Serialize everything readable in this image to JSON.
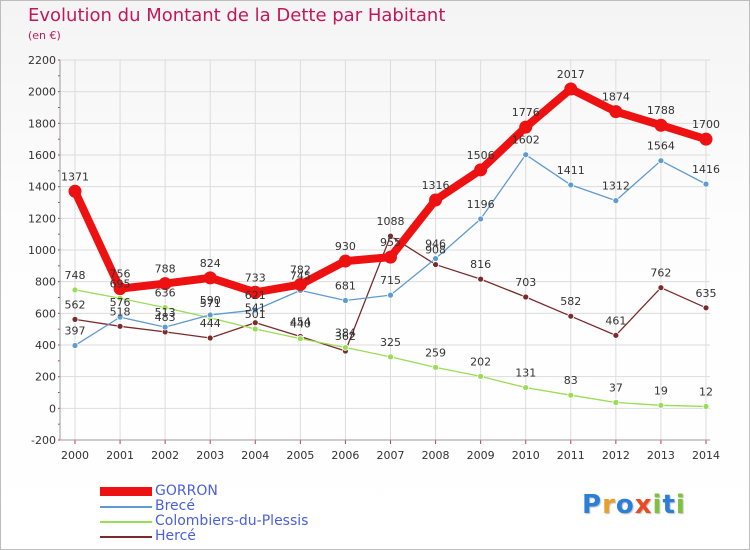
{
  "header": {
    "title": "Evolution du Montant de la Dette par Habitant",
    "subtitle": "(en €)"
  },
  "brand": {
    "letters": [
      "P",
      "r",
      "o",
      "x",
      "i",
      "t",
      "i"
    ],
    "colors": [
      "#2b7fd6",
      "#e8a02a",
      "#2b7fd6",
      "#e84a24",
      "#7dc23a",
      "#2b7fd6",
      "#7dc23a"
    ]
  },
  "chart_data": {
    "type": "line",
    "title": "Evolution du Montant de la Dette par Habitant",
    "subtitle": "(en €)",
    "xlabel": "",
    "ylabel": "",
    "x": [
      2000,
      2001,
      2002,
      2003,
      2004,
      2005,
      2006,
      2007,
      2008,
      2009,
      2010,
      2011,
      2012,
      2013,
      2014
    ],
    "ylim": [
      -200,
      2200
    ],
    "yticks": [
      -200,
      0,
      200,
      400,
      600,
      800,
      1000,
      1200,
      1400,
      1600,
      1800,
      2000,
      2200
    ],
    "grid": true,
    "legend_position": "bottom-left",
    "series": [
      {
        "name": "GORRON",
        "color": "#ee1111",
        "emphasis": "thick",
        "values": [
          1371,
          756,
          788,
          824,
          733,
          782,
          930,
          955,
          1316,
          1506,
          1776,
          2017,
          1874,
          1788,
          1700
        ],
        "labels": [
          "1371",
          "756",
          "788",
          "824",
          "733",
          "782",
          "930",
          "955",
          "1316",
          "1506",
          "1776",
          "2017",
          "1874",
          "1788",
          "1700"
        ]
      },
      {
        "name": "Brecé",
        "color": "#5f9bd1",
        "emphasis": "thin",
        "values": [
          397,
          576,
          513,
          590,
          621,
          745,
          681,
          715,
          946,
          1196,
          1602,
          1411,
          1312,
          1564,
          1416
        ],
        "labels": [
          "397",
          "576",
          "513",
          "590",
          "621",
          "745",
          "681",
          "715",
          "946",
          "1196",
          "1602",
          "1411",
          "1312",
          "1564",
          "1416"
        ]
      },
      {
        "name": "Colombiers-du-Plessis",
        "color": "#99dd55",
        "emphasis": "thin",
        "values": [
          748,
          695,
          636,
          571,
          501,
          440,
          384,
          325,
          259,
          202,
          131,
          83,
          37,
          19,
          12
        ],
        "labels": [
          "748",
          "695",
          "636",
          "571",
          "501",
          "440",
          "384",
          "325",
          "259",
          "202",
          "131",
          "83",
          "37",
          "19",
          "12"
        ]
      },
      {
        "name": "Hercé",
        "color": "#7a2b2b",
        "emphasis": "thin",
        "values": [
          562,
          518,
          483,
          444,
          541,
          454,
          362,
          1088,
          908,
          816,
          703,
          582,
          461,
          762,
          635
        ],
        "labels": [
          "562",
          "518",
          "483",
          "444",
          "541",
          "454",
          "362",
          "1088",
          "908",
          "816",
          "703",
          "582",
          "461",
          "762",
          "635"
        ]
      }
    ]
  }
}
